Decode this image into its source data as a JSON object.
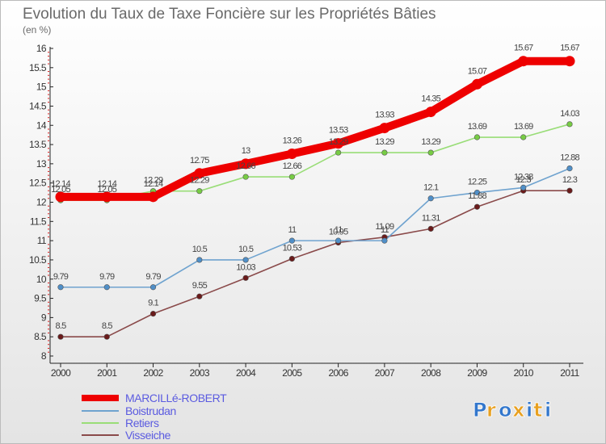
{
  "chart_data": {
    "type": "line",
    "title": "Evolution du Taux de Taxe Foncière sur les Propriétés Bâties",
    "subtitle": "(en %)",
    "x": [
      "2000",
      "2001",
      "2002",
      "2003",
      "2004",
      "2005",
      "2006",
      "2007",
      "2008",
      "2009",
      "2010",
      "2011"
    ],
    "ylim": [
      8,
      16
    ],
    "yticks": [
      "8",
      "8.5",
      "9",
      "9.5",
      "10",
      "10.5",
      "11",
      "11.5",
      "12",
      "12.5",
      "13",
      "13.5",
      "14",
      "14.5",
      "15",
      "15.5",
      "16"
    ],
    "grid": false,
    "legend_position": "bottom-left",
    "series": [
      {
        "name": "MARCILLé-ROBERT",
        "color": "#ee0000",
        "marker_color": "#ee0000",
        "values": [
          12.14,
          12.14,
          12.14,
          12.75,
          13,
          13.26,
          13.53,
          13.93,
          14.35,
          15.07,
          15.67,
          15.67
        ],
        "labels": [
          "12.14",
          "12.14",
          "12.14",
          "12.75",
          "13",
          "13.26",
          "13.53",
          "13.93",
          "14.35",
          "15.07",
          "15.67",
          "15.67"
        ]
      },
      {
        "name": "Boistrudan",
        "color": "#6fa3cf",
        "marker_color": "#4f8fc8",
        "values": [
          9.79,
          9.79,
          9.79,
          10.5,
          10.5,
          11,
          11,
          11,
          12.1,
          12.25,
          12.38,
          12.88
        ],
        "labels": [
          "9.79",
          "9.79",
          "9.79",
          "10.5",
          "10.5",
          "11",
          "11",
          "11",
          "12.1",
          "12.25",
          "12.38",
          "12.88"
        ]
      },
      {
        "name": "Retiers",
        "color": "#99dd77",
        "marker_color": "#77cc44",
        "values": [
          12.05,
          12.05,
          12.29,
          12.29,
          12.66,
          12.66,
          13.29,
          13.29,
          13.29,
          13.69,
          13.69,
          14.03
        ],
        "labels": [
          "12.05",
          "12.05",
          "12.29",
          "12.29",
          "12.66",
          "12.66",
          "13.29",
          "13.29",
          "13.29",
          "13.69",
          "13.69",
          "14.03"
        ]
      },
      {
        "name": "Visseiche",
        "color": "#8a4a4a",
        "marker_color": "#6a1a1a",
        "values": [
          8.5,
          8.5,
          9.1,
          9.55,
          10.03,
          10.53,
          10.95,
          11.09,
          11.31,
          11.88,
          12.3,
          12.3
        ],
        "labels": [
          "8.5",
          "8.5",
          "9.1",
          "9.55",
          "10.03",
          "10.53",
          "10.95",
          "11.09",
          "11.31",
          "11.88",
          "12.3",
          "12.3"
        ]
      }
    ]
  },
  "logo": {
    "letters": [
      "P",
      "r",
      "o",
      "x",
      "i",
      "t",
      "i"
    ]
  }
}
